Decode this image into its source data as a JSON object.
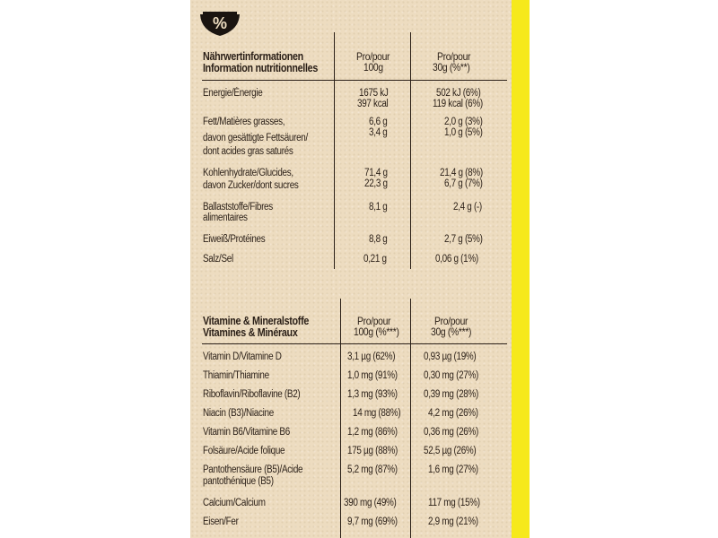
{
  "nutrition": {
    "header": {
      "title_line1": "Nährwertinformationen",
      "title_line2": "Information nutritionnelles",
      "col1_line1": "Pro/pour",
      "col1_line2": "100g",
      "col2_line1": "Pro/pour",
      "col2_line2": "30g (%**)"
    },
    "rows": [
      {
        "label1": "Energie/Énergie",
        "label2": "",
        "v1a": "1675 kJ",
        "v1b": "397 kcal",
        "v2a": "502 kJ (6%)",
        "v2b": "119 kcal (6%)"
      },
      {
        "label1": "Fett/Matières grasses,",
        "label2": "davon gesättigte Fettsäuren/",
        "label3": "dont acides gras saturés",
        "v1a": "6,6 g",
        "v1b": "3,4 g",
        "v2a": "2,0 g (3%)",
        "v2b": "1,0 g (5%)"
      },
      {
        "label1": "Kohlenhydrate/Glucides,",
        "label2": "davon Zucker/dont sucres",
        "v1a": "71,4 g",
        "v1b": "22,3 g",
        "v2a": "21,4 g (8%)",
        "v2b": "6,7 g (7%)"
      },
      {
        "label1": "Ballaststoffe/Fibres",
        "label2": "alimentaires",
        "v1a": "8,1 g",
        "v2a": "2,4 g (-)"
      },
      {
        "label1": "Eiweiß/Protéines",
        "v1a": "8,8 g",
        "v2a": "2,7 g (5%)"
      },
      {
        "label1": "Salz/Sel",
        "v1a": "0,21 g",
        "v2a": "0,06 g (1%)"
      }
    ]
  },
  "vitamins": {
    "header": {
      "title_line1": "Vitamine & Mineralstoffe",
      "title_line2": "Vitamines & Minéraux",
      "col1_line1": "Pro/pour",
      "col1_line2": "100g (%***)",
      "col2_line1": "Pro/pour",
      "col2_line2": "30g (%***)"
    },
    "rows": [
      {
        "label1": "Vitamin D/Vitamine D",
        "v1": "3,1 µg (62%)",
        "v2": "0,93 µg (19%)"
      },
      {
        "label1": "Thiamin/Thiamine",
        "v1": "1,0 mg (91%)",
        "v2": "0,30 mg (27%)"
      },
      {
        "label1": "Riboflavin/Riboflavine (B2)",
        "v1": "1,3 mg (93%)",
        "v2": "0,39 mg (28%)"
      },
      {
        "label1": "Niacin (B3)/Niacine",
        "v1": "14 mg (88%)",
        "v2": "4,2 mg (26%)"
      },
      {
        "label1": "Vitamin B6/Vitamine B6",
        "v1": "1,2 mg (86%)",
        "v2": "0,36 mg (26%)"
      },
      {
        "label1": "Folsäure/Acide folique",
        "v1": "175 µg (88%)",
        "v2": "52,5 µg (26%)"
      },
      {
        "label1": "Pantothensäure (B5)/Acide",
        "label2": "pantothénique (B5)",
        "v1": "5,2 mg (87%)",
        "v2": "1,6 mg (27%)"
      },
      {
        "label1": "Calcium/Calcium",
        "v1": "390 mg (49%)",
        "v2": "117 mg (15%)"
      },
      {
        "label1": "Eisen/Fer",
        "v1": "9,7 mg (69%)",
        "v2": "2,9 mg (21%)"
      }
    ]
  },
  "icon": {
    "name": "bowl-percent-icon",
    "glyph": "%"
  },
  "colors": {
    "panel": "#eddcc0",
    "ink": "#2a1f17",
    "strip": "#f6e91b"
  }
}
